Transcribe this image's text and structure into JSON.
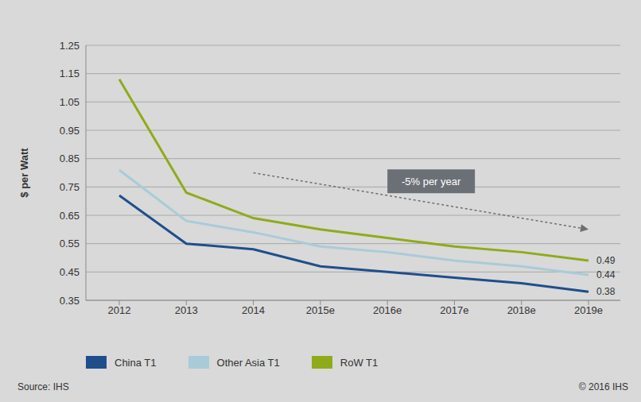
{
  "chart_data": {
    "type": "line",
    "y_label": "$ per Watt",
    "source": "Source: IHS",
    "copyright": "© 2016 IHS",
    "categories": [
      "2012",
      "2013",
      "2014",
      "2015e",
      "2016e",
      "2017e",
      "2018e",
      "2019e"
    ],
    "series": [
      {
        "name": "China T1",
        "color": "#1f4e8c",
        "values": [
          0.72,
          0.55,
          0.53,
          0.47,
          0.45,
          0.43,
          0.41,
          0.38
        ],
        "value_labels": [
          null,
          null,
          null,
          null,
          null,
          null,
          null,
          "0.38"
        ]
      },
      {
        "name": "Other Asia T1",
        "color": "#a9cbd9",
        "values": [
          0.81,
          0.63,
          0.59,
          0.54,
          0.52,
          0.49,
          0.47,
          0.44
        ],
        "value_labels": [
          null,
          null,
          null,
          null,
          null,
          null,
          null,
          "0.44"
        ]
      },
      {
        "name": "RoW T1",
        "color": "#8fab1a",
        "values": [
          1.13,
          0.73,
          0.64,
          0.6,
          0.57,
          0.54,
          0.52,
          0.49
        ],
        "value_labels": [
          null,
          null,
          null,
          null,
          null,
          null,
          null,
          "0.49"
        ]
      }
    ],
    "ylim": [
      0.35,
      1.25
    ],
    "yticks": [
      0.35,
      0.45,
      0.55,
      0.65,
      0.75,
      0.85,
      0.95,
      1.05,
      1.15,
      1.25
    ],
    "grid": true,
    "legend": "bottom left",
    "annotation": {
      "text": "-5% per year",
      "x": "2016e",
      "y": 0.77,
      "arrow_from": {
        "x": "2014",
        "y": 0.8
      },
      "arrow_to": {
        "x": "2019e",
        "y": 0.6
      }
    }
  }
}
